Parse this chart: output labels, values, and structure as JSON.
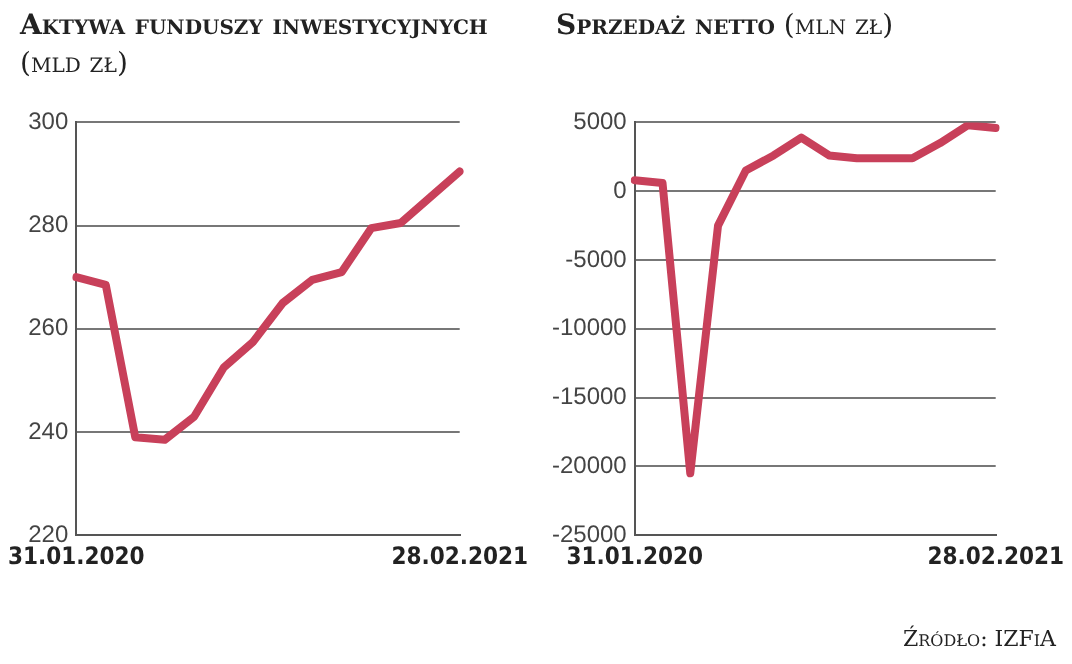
{
  "chart_data": [
    {
      "type": "line",
      "title": "Aktywa funduszy inwestycyjnych",
      "subtitle": "(mld zł)",
      "categories": [
        "31.01.2020",
        null,
        null,
        null,
        null,
        null,
        null,
        null,
        null,
        null,
        null,
        null,
        null,
        "28.02.2021"
      ],
      "series": [
        {
          "color": "#c8405a",
          "values": [
            270,
            268.5,
            239,
            238.5,
            243,
            252.5,
            257.5,
            265,
            269.5,
            271,
            279.5,
            280.5,
            285.5,
            290.5
          ]
        }
      ],
      "ylim": [
        220,
        300
      ],
      "yticks": [
        220,
        240,
        260,
        280,
        300
      ],
      "grid": "y",
      "legend": false,
      "marker": "none",
      "line_style": "solid"
    },
    {
      "type": "line",
      "title": "Sprzedaż netto",
      "subtitle": "(mln zł)",
      "categories": [
        "31.01.2020",
        null,
        null,
        null,
        null,
        null,
        null,
        null,
        null,
        null,
        null,
        null,
        null,
        "28.02.2021"
      ],
      "series": [
        {
          "color": "#c8405a",
          "values": [
            800,
            600,
            -20500,
            -2500,
            1500,
            2600,
            3900,
            2600,
            2400,
            2400,
            2400,
            3500,
            4800,
            4600
          ]
        }
      ],
      "ylim": [
        -25000,
        5000
      ],
      "yticks": [
        -25000,
        -20000,
        -15000,
        -10000,
        -5000,
        0,
        5000
      ],
      "grid": "y",
      "legend": false,
      "marker": "none",
      "line_style": "solid",
      "annotations": [
        "Źródło: IZFiA"
      ]
    }
  ]
}
